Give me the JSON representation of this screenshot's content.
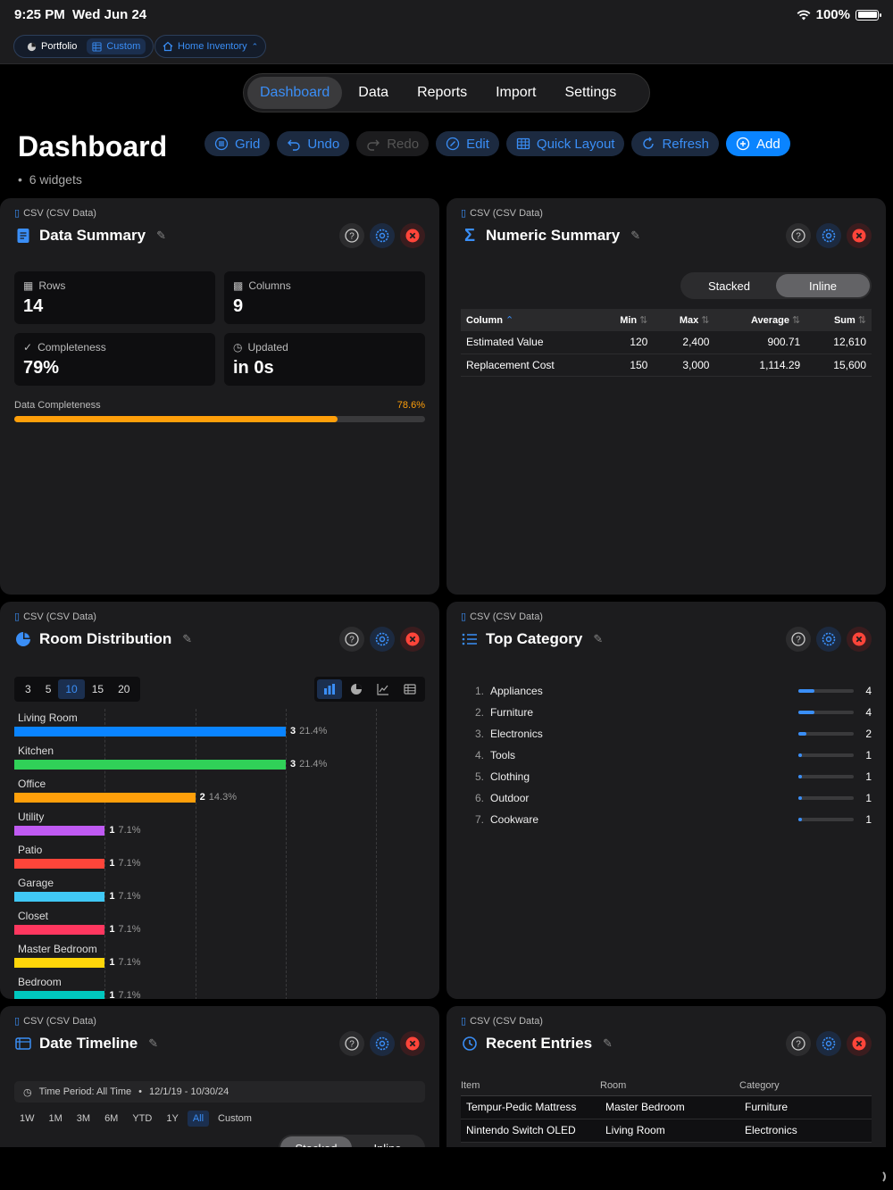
{
  "status": {
    "time": "9:25 PM",
    "date": "Wed Jun 24",
    "battery": "100%"
  },
  "breadcrumb": {
    "portfolio": "Portfolio",
    "custom": "Custom",
    "inventory": "Home Inventory"
  },
  "nav": {
    "tabs": [
      "Dashboard",
      "Data",
      "Reports",
      "Import",
      "Settings"
    ],
    "active": "Dashboard"
  },
  "page": {
    "title": "Dashboard",
    "subtitle": "6 widgets"
  },
  "toolbar": {
    "grid": "Grid",
    "undo": "Undo",
    "redo": "Redo",
    "edit": "Edit",
    "quick_layout": "Quick Layout",
    "refresh": "Refresh",
    "add": "Add"
  },
  "source_label": "CSV (CSV Data)",
  "data_summary": {
    "title": "Data Summary",
    "rows_label": "Rows",
    "rows": "14",
    "columns_label": "Columns",
    "columns": "9",
    "completeness_label": "Completeness",
    "completeness": "79%",
    "updated_label": "Updated",
    "updated": "in 0s",
    "bar_label": "Data Completeness",
    "bar_pct_text": "78.6%",
    "bar_pct": 78.6
  },
  "numeric_summary": {
    "title": "Numeric Summary",
    "modes": [
      "Stacked",
      "Inline"
    ],
    "active_mode": "Inline",
    "headers": {
      "column": "Column",
      "min": "Min",
      "max": "Max",
      "average": "Average",
      "sum": "Sum"
    },
    "rows": [
      {
        "column": "Estimated Value",
        "min": "120",
        "max": "2,400",
        "average": "900.71",
        "sum": "12,610"
      },
      {
        "column": "Replacement Cost",
        "min": "150",
        "max": "3,000",
        "average": "1,114.29",
        "sum": "15,600"
      }
    ]
  },
  "room_distribution": {
    "title": "Room Distribution",
    "limits": [
      "3",
      "5",
      "10",
      "15",
      "20"
    ],
    "active_limit": "10"
  },
  "chart_data": {
    "type": "bar",
    "orientation": "horizontal",
    "categories": [
      "Living Room",
      "Kitchen",
      "Office",
      "Utility",
      "Patio",
      "Garage",
      "Closet",
      "Master Bedroom",
      "Bedroom"
    ],
    "values": [
      3,
      3,
      2,
      1,
      1,
      1,
      1,
      1,
      1
    ],
    "percents": [
      "21.4%",
      "21.4%",
      "14.3%",
      "7.1%",
      "7.1%",
      "7.1%",
      "7.1%",
      "7.1%",
      "7.1%"
    ],
    "colors": [
      "#0a84ff",
      "#30d158",
      "#ff9f0a",
      "#bf5af2",
      "#ff453a",
      "#40c8f5",
      "#ff375f",
      "#ffd60a",
      "#00c7be"
    ],
    "xlim": [
      0,
      3
    ],
    "grid": true
  },
  "top_category": {
    "title": "Top Category",
    "items": [
      {
        "rank": "1.",
        "name": "Appliances",
        "count": "4",
        "value": 4
      },
      {
        "rank": "2.",
        "name": "Furniture",
        "count": "4",
        "value": 4
      },
      {
        "rank": "3.",
        "name": "Electronics",
        "count": "2",
        "value": 2
      },
      {
        "rank": "4.",
        "name": "Tools",
        "count": "1",
        "value": 1
      },
      {
        "rank": "5.",
        "name": "Clothing",
        "count": "1",
        "value": 1
      },
      {
        "rank": "6.",
        "name": "Outdoor",
        "count": "1",
        "value": 1
      },
      {
        "rank": "7.",
        "name": "Cookware",
        "count": "1",
        "value": 1
      }
    ],
    "max": 14
  },
  "date_timeline": {
    "title": "Date Timeline",
    "period": "Time Period: All Time",
    "range": "12/1/19 - 10/30/24",
    "ranges": [
      "1W",
      "1M",
      "3M",
      "6M",
      "YTD",
      "1Y",
      "All",
      "Custom"
    ],
    "active_range": "All",
    "modes": [
      "Stacked",
      "Inline"
    ]
  },
  "recent_entries": {
    "title": "Recent Entries",
    "headers": {
      "item": "Item",
      "room": "Room",
      "category": "Category"
    },
    "rows": [
      {
        "item": "Tempur-Pedic Mattress",
        "room": "Master Bedroom",
        "category": "Furniture"
      },
      {
        "item": "Nintendo Switch OLED",
        "room": "Living Room",
        "category": "Electronics"
      }
    ]
  }
}
